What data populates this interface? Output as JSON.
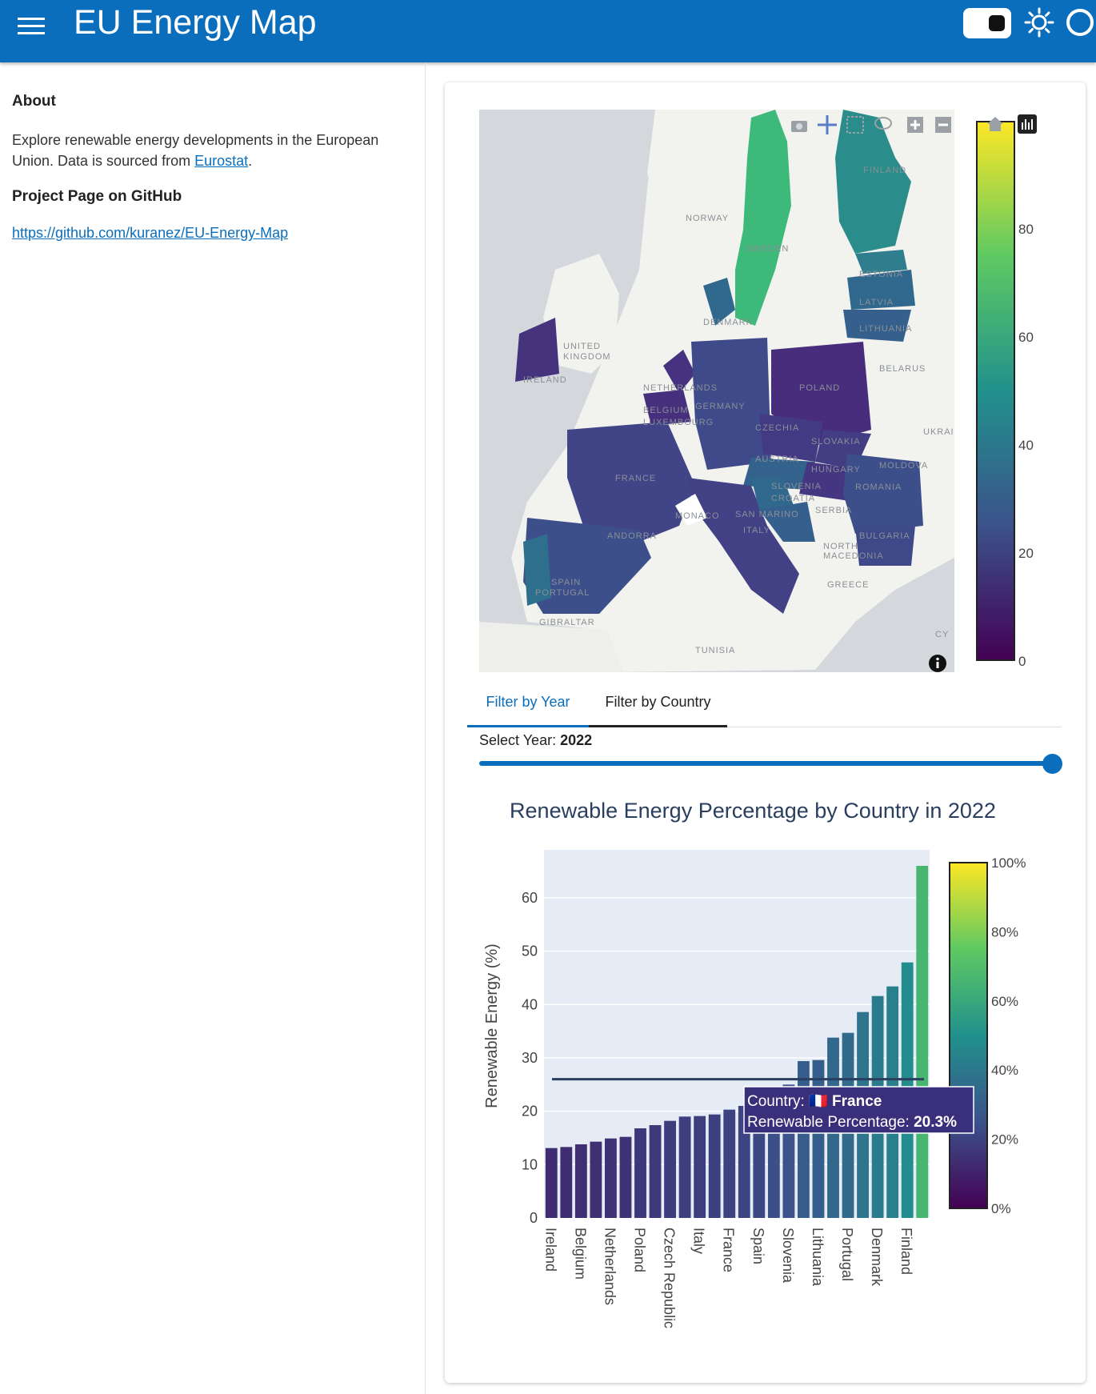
{
  "header": {
    "title": "EU Energy Map"
  },
  "sidebar": {
    "about_heading": "About",
    "about_text": "Explore renewable energy developments in the European Union. Data is sourced from",
    "source_link": "Eurostat",
    "about_end": ".",
    "github_heading": "Project Page on GitHub",
    "github_url": "https://github.com/kuranez/EU-Energy-Map"
  },
  "map": {
    "colorbar": {
      "ticks": [
        "80",
        "60",
        "40",
        "20",
        "0"
      ],
      "top_tick_partial": "1"
    },
    "labels": [
      "FINLAND",
      "NORWAY",
      "SWEDEN",
      "ESTONIA",
      "LATVIA",
      "LITHUANIA",
      "DENMARK",
      "UNITED",
      "KINGDOM",
      "IRELAND",
      "NETHERLANDS",
      "BELGIUM",
      "LUXEMBOURG",
      "GERMANY",
      "POLAND",
      "BELARUS",
      "CZECHIA",
      "SLOVAKIA",
      "UKRAI",
      "MOLDOVA",
      "AUSTRIA",
      "HUNGARY",
      "ROMANIA",
      "FRANCE",
      "SLOVENIA",
      "CROATIA",
      "SERBIA",
      "MONACO",
      "SAN MARINO",
      "ITALY",
      "BULGARIA",
      "NORTH",
      "MACEDONIA",
      "ANDORRA",
      "SPAIN",
      "PORTUGAL",
      "GREECE",
      "GIBRALTAR",
      "TUNISIA",
      "CY"
    ],
    "colors": {
      "low": "#46327e",
      "mid": "#365c8d",
      "high": "#3aba76"
    }
  },
  "tabs": [
    {
      "label": "Filter by Year"
    },
    {
      "label": "Filter by Country"
    }
  ],
  "year_filter": {
    "label": "Select Year:",
    "value": "2022"
  },
  "chart_data": {
    "type": "bar",
    "title": "Renewable Energy Percentage by Country in 2022",
    "xlabel": "",
    "ylabel": "Renewable Energy (%)",
    "ylim": [
      0,
      69
    ],
    "yticks": [
      0,
      10,
      20,
      30,
      40,
      50,
      60
    ],
    "tick_labels": [
      "Ireland",
      "Belgium",
      "Netherlands",
      "Poland",
      "Czech Republic",
      "Italy",
      "France",
      "Spain",
      "Slovenia",
      "Lithuania",
      "Portugal",
      "Denmark",
      "Finland"
    ],
    "categories": [
      "Ireland",
      "",
      "Belgium",
      "",
      "Netherlands",
      "",
      "Poland",
      "",
      "Czech Republic",
      "",
      "Italy",
      "",
      "France",
      "",
      "Spain",
      "",
      "Slovenia",
      "",
      "Lithuania",
      "",
      "Portugal",
      "",
      "Denmark",
      "",
      "Finland",
      ""
    ],
    "values": [
      13.1,
      13.3,
      13.8,
      14.3,
      14.9,
      15.2,
      16.8,
      17.4,
      18.2,
      19.0,
      19.1,
      19.4,
      20.3,
      21.0,
      22.0,
      24.0,
      25.0,
      29.4,
      29.6,
      33.8,
      34.7,
      38.6,
      41.6,
      43.4,
      47.9,
      66.0
    ],
    "reference_line": 26.0,
    "colorbar": {
      "ticks": [
        "100%",
        "80%",
        "60%",
        "40%",
        "20%",
        "0%"
      ]
    },
    "tooltip": {
      "country_label": "Country:",
      "country": "France",
      "flag": "🇫🇷",
      "percentage_label": "Renewable Percentage:",
      "percentage": "20.3%"
    },
    "grid": true
  }
}
